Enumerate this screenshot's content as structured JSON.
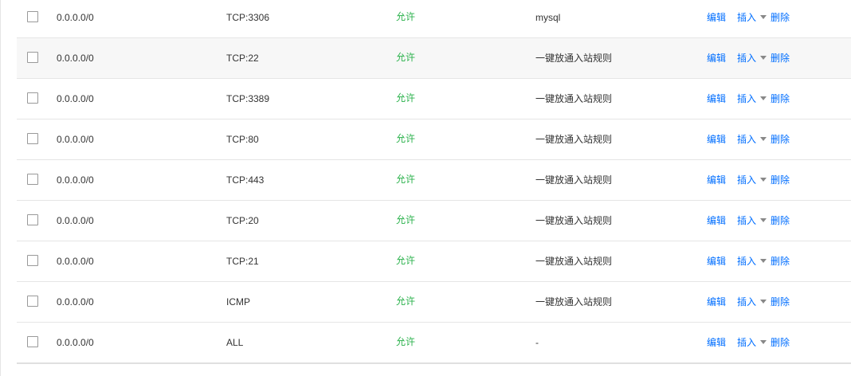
{
  "rules": [
    {
      "source": "0.0.0.0/0",
      "port": "TCP:3306",
      "policy": "允许",
      "remark": "mysql",
      "hover": false
    },
    {
      "source": "0.0.0.0/0",
      "port": "TCP:22",
      "policy": "允许",
      "remark": "一键放通入站规则",
      "hover": true
    },
    {
      "source": "0.0.0.0/0",
      "port": "TCP:3389",
      "policy": "允许",
      "remark": "一键放通入站规则",
      "hover": false
    },
    {
      "source": "0.0.0.0/0",
      "port": "TCP:80",
      "policy": "允许",
      "remark": "一键放通入站规则",
      "hover": false
    },
    {
      "source": "0.0.0.0/0",
      "port": "TCP:443",
      "policy": "允许",
      "remark": "一键放通入站规则",
      "hover": false
    },
    {
      "source": "0.0.0.0/0",
      "port": "TCP:20",
      "policy": "允许",
      "remark": "一键放通入站规则",
      "hover": false
    },
    {
      "source": "0.0.0.0/0",
      "port": "TCP:21",
      "policy": "允许",
      "remark": "一键放通入站规则",
      "hover": false
    },
    {
      "source": "0.0.0.0/0",
      "port": "ICMP",
      "policy": "允许",
      "remark": "一键放通入站规则",
      "hover": false
    },
    {
      "source": "0.0.0.0/0",
      "port": "ALL",
      "policy": "允许",
      "remark": "-",
      "hover": false
    }
  ],
  "actions": {
    "edit": "编辑",
    "insert": "插入",
    "delete": "删除"
  },
  "colors": {
    "allow": "#2bb24c",
    "link": "#006eff",
    "hover_row": "#f7f7f7",
    "border": "#e5e5e5"
  },
  "icons": {
    "checkbox": "checkbox-icon",
    "insert_dropdown": "caret-down-icon"
  }
}
